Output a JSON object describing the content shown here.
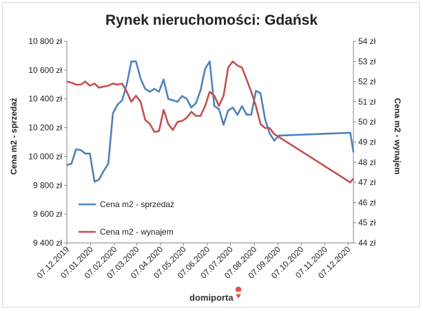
{
  "chart_data": {
    "type": "line",
    "title": "Rynek nieruchomości: Gdańsk",
    "ylabel_left": "Cena m2 - sprzedaż",
    "ylabel_right": "Cena m2 - wynajem",
    "ylim_left": [
      9400,
      10800
    ],
    "ylim_right": [
      44,
      54
    ],
    "yticks_left": [
      "9 400 zł",
      "9 600 zł",
      "9 800 zł",
      "10 000 zł",
      "10 200 zł",
      "10 400 zł",
      "10 600 zł",
      "10 800 zł"
    ],
    "yticks_right": [
      "44 zł",
      "45 zł",
      "46 zł",
      "47 zł",
      "48 zł",
      "49 zł",
      "50 zł",
      "51 zł",
      "52 zł",
      "53 zł",
      "54 zł"
    ],
    "xticks": [
      "07.12.2019",
      "07.01.2020",
      "07.02.2020",
      "07.03.2020",
      "07.04.2020",
      "07.05.2020",
      "07.06.2020",
      "07.07.2020",
      "07.08.2020",
      "07.09.2020",
      "07.10.2020",
      "07.11.2020",
      "07.12.2020"
    ],
    "x_range": [
      "2019-12-07",
      "2020-12-14"
    ],
    "series": [
      {
        "name": "Cena m2 - sprzedaż",
        "axis": "left",
        "color": "#4f81bd",
        "points": [
          [
            "2019-12-07",
            9940
          ],
          [
            "2019-12-13",
            9950
          ],
          [
            "2019-12-19",
            10050
          ],
          [
            "2019-12-25",
            10045
          ],
          [
            "2019-12-31",
            10020
          ],
          [
            "2020-01-06",
            10020
          ],
          [
            "2020-01-12",
            9825
          ],
          [
            "2020-01-18",
            9840
          ],
          [
            "2020-01-24",
            9900
          ],
          [
            "2020-01-30",
            9950
          ],
          [
            "2020-02-05",
            10300
          ],
          [
            "2020-02-11",
            10360
          ],
          [
            "2020-02-17",
            10390
          ],
          [
            "2020-02-23",
            10500
          ],
          [
            "2020-02-29",
            10660
          ],
          [
            "2020-03-06",
            10660
          ],
          [
            "2020-03-12",
            10540
          ],
          [
            "2020-03-18",
            10470
          ],
          [
            "2020-03-24",
            10450
          ],
          [
            "2020-03-30",
            10470
          ],
          [
            "2020-04-05",
            10450
          ],
          [
            "2020-04-11",
            10535
          ],
          [
            "2020-04-17",
            10400
          ],
          [
            "2020-04-23",
            10390
          ],
          [
            "2020-04-29",
            10380
          ],
          [
            "2020-05-05",
            10420
          ],
          [
            "2020-05-11",
            10400
          ],
          [
            "2020-05-17",
            10340
          ],
          [
            "2020-05-23",
            10370
          ],
          [
            "2020-05-29",
            10460
          ],
          [
            "2020-06-04",
            10610
          ],
          [
            "2020-06-10",
            10660
          ],
          [
            "2020-06-16",
            10350
          ],
          [
            "2020-06-22",
            10330
          ],
          [
            "2020-06-28",
            10220
          ],
          [
            "2020-07-04",
            10320
          ],
          [
            "2020-07-10",
            10340
          ],
          [
            "2020-07-16",
            10290
          ],
          [
            "2020-07-22",
            10350
          ],
          [
            "2020-07-28",
            10290
          ],
          [
            "2020-08-03",
            10290
          ],
          [
            "2020-08-09",
            10455
          ],
          [
            "2020-08-15",
            10440
          ],
          [
            "2020-08-21",
            10260
          ],
          [
            "2020-08-27",
            10160
          ],
          [
            "2020-09-02",
            10110
          ],
          [
            "2020-09-08",
            10145
          ],
          [
            "2020-12-10",
            10165
          ],
          [
            "2020-12-14",
            10030
          ]
        ]
      },
      {
        "name": "Cena m2 - wynajem",
        "axis": "right",
        "color": "#c0504d",
        "points": [
          [
            "2019-12-07",
            52.0
          ],
          [
            "2019-12-13",
            51.95
          ],
          [
            "2019-12-19",
            51.85
          ],
          [
            "2019-12-25",
            51.85
          ],
          [
            "2019-12-31",
            52.0
          ],
          [
            "2020-01-06",
            51.8
          ],
          [
            "2020-01-12",
            51.9
          ],
          [
            "2020-01-18",
            51.7
          ],
          [
            "2020-01-24",
            51.75
          ],
          [
            "2020-01-30",
            51.8
          ],
          [
            "2020-02-05",
            51.9
          ],
          [
            "2020-02-11",
            51.85
          ],
          [
            "2020-02-17",
            51.9
          ],
          [
            "2020-02-23",
            51.5
          ],
          [
            "2020-02-29",
            51.0
          ],
          [
            "2020-03-06",
            51.3
          ],
          [
            "2020-03-12",
            51.0
          ],
          [
            "2020-03-18",
            50.1
          ],
          [
            "2020-03-24",
            49.9
          ],
          [
            "2020-03-30",
            49.5
          ],
          [
            "2020-04-05",
            49.55
          ],
          [
            "2020-04-11",
            50.6
          ],
          [
            "2020-04-17",
            49.9
          ],
          [
            "2020-04-23",
            49.6
          ],
          [
            "2020-04-29",
            50.0
          ],
          [
            "2020-05-05",
            50.05
          ],
          [
            "2020-05-11",
            50.2
          ],
          [
            "2020-05-17",
            50.5
          ],
          [
            "2020-05-23",
            50.3
          ],
          [
            "2020-05-29",
            50.3
          ],
          [
            "2020-06-04",
            50.8
          ],
          [
            "2020-06-10",
            51.5
          ],
          [
            "2020-06-16",
            51.3
          ],
          [
            "2020-06-22",
            50.8
          ],
          [
            "2020-06-28",
            51.3
          ],
          [
            "2020-07-04",
            52.7
          ],
          [
            "2020-07-10",
            53.0
          ],
          [
            "2020-07-16",
            52.8
          ],
          [
            "2020-07-22",
            52.7
          ],
          [
            "2020-07-28",
            52.1
          ],
          [
            "2020-08-03",
            51.5
          ],
          [
            "2020-08-09",
            50.8
          ],
          [
            "2020-08-15",
            49.9
          ],
          [
            "2020-08-21",
            49.7
          ],
          [
            "2020-08-27",
            49.7
          ],
          [
            "2020-09-02",
            49.4
          ],
          [
            "2020-12-10",
            47.0
          ],
          [
            "2020-12-14",
            47.2
          ]
        ]
      }
    ],
    "legend": "inside-left",
    "grid": false
  },
  "branding": {
    "logo_text": "domiporta"
  }
}
